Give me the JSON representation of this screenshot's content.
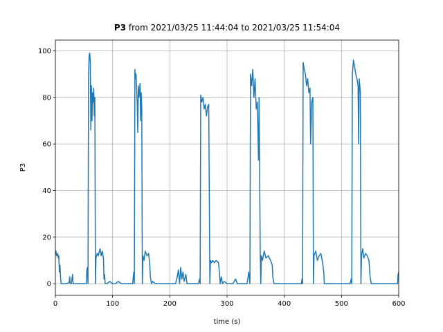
{
  "chart_data": {
    "type": "line",
    "title": {
      "bold": "P3",
      "text": "from 2021/03/25 11:44:04 to 2021/03/25 11:54:04"
    },
    "xlabel": "time (s)",
    "ylabel": "P3",
    "color": "#1f77b4",
    "grid": true,
    "xlim": [
      0,
      600
    ],
    "xticks": [
      0,
      100,
      200,
      300,
      400,
      500,
      600
    ],
    "ylim": [
      -5,
      104.6
    ],
    "yticks": [
      0,
      20,
      40,
      60,
      80,
      100
    ],
    "x": [
      0,
      1,
      2,
      4,
      5,
      6,
      7,
      8,
      9,
      10,
      12,
      15,
      20,
      24,
      25,
      26,
      28,
      30,
      31,
      35,
      40,
      45,
      50,
      54,
      55,
      56,
      57,
      58,
      59,
      60,
      61,
      62,
      63,
      64,
      65,
      66,
      67,
      68,
      69,
      70,
      71,
      73,
      75,
      78,
      80,
      82,
      84,
      85,
      86,
      87,
      90,
      95,
      100,
      105,
      110,
      115,
      120,
      125,
      130,
      135,
      137,
      138,
      139,
      140,
      141,
      143,
      144,
      145,
      146,
      148,
      149,
      150,
      151,
      152,
      153,
      155,
      157,
      160,
      163,
      165,
      166,
      168,
      170,
      175,
      180,
      185,
      190,
      195,
      200,
      205,
      210,
      213,
      215,
      217,
      219,
      221,
      223,
      225,
      228,
      230,
      235,
      240,
      245,
      250,
      252,
      253,
      254,
      256,
      258,
      260,
      262,
      264,
      266,
      268,
      270,
      271,
      273,
      275,
      278,
      281,
      285,
      287,
      288,
      290,
      292,
      295,
      300,
      305,
      310,
      315,
      318,
      320,
      325,
      330,
      335,
      338,
      340,
      341,
      343,
      345,
      347,
      349,
      351,
      353,
      355,
      356,
      358,
      359,
      360,
      362,
      365,
      368,
      372,
      376,
      379,
      380,
      382,
      385,
      390,
      395,
      400,
      405,
      410,
      415,
      420,
      425,
      430,
      431,
      432,
      433,
      435,
      437,
      439,
      441,
      443,
      445,
      446,
      448,
      450,
      451,
      452,
      455,
      458,
      461,
      464,
      467,
      469,
      470,
      475,
      480,
      485,
      490,
      495,
      500,
      505,
      510,
      515,
      517,
      518,
      519,
      521,
      523,
      525,
      527,
      529,
      530,
      531,
      533,
      534,
      535,
      537,
      539,
      542,
      545,
      548,
      550,
      552,
      555,
      560,
      565,
      570,
      575,
      580,
      585,
      590,
      595,
      598,
      599,
      600
    ],
    "values": [
      13,
      14,
      12,
      13,
      11,
      12,
      5,
      8,
      3,
      0,
      0,
      0,
      0,
      0.5,
      3,
      0,
      0,
      4,
      0,
      0,
      0,
      0,
      0,
      0,
      6,
      7,
      0,
      90,
      98,
      99,
      95,
      66,
      85,
      70,
      82,
      78,
      84,
      72,
      80,
      0,
      11,
      13,
      12,
      15,
      12,
      14,
      11,
      2,
      4,
      0,
      0,
      1,
      0,
      0,
      1,
      0,
      0,
      0,
      0,
      0,
      5,
      0,
      92,
      88,
      90,
      78,
      65,
      85,
      80,
      86,
      70,
      82,
      75,
      0,
      12,
      10,
      14,
      12,
      13,
      8,
      3,
      0,
      1,
      0,
      0,
      0,
      0,
      0,
      0,
      0,
      0,
      3,
      6,
      0,
      7,
      2,
      5,
      1,
      4,
      0,
      0,
      0,
      0,
      0,
      2,
      0,
      81,
      78,
      80,
      75,
      77,
      72,
      76,
      77,
      0,
      10,
      9,
      10,
      9,
      10,
      9,
      4,
      0,
      3,
      0,
      1,
      0,
      0,
      0,
      2,
      0,
      0,
      0,
      0,
      0,
      5,
      0,
      90,
      85,
      92,
      80,
      88,
      75,
      78,
      53,
      80,
      14,
      0,
      12,
      10,
      14,
      11,
      12,
      10,
      8,
      3,
      0,
      0,
      0,
      0,
      0,
      0,
      0,
      0,
      0,
      0,
      0,
      2,
      0,
      95,
      92,
      90,
      85,
      88,
      82,
      84,
      60,
      78,
      80,
      0,
      12,
      14,
      10,
      12,
      13,
      9,
      5,
      0,
      0,
      0,
      0,
      0,
      0,
      0,
      0,
      0,
      0,
      2,
      0,
      90,
      96,
      93,
      90,
      88,
      85,
      60,
      88,
      82,
      0,
      12,
      15,
      11,
      13,
      12,
      10,
      3,
      0,
      0,
      0,
      0,
      0,
      0,
      0,
      0,
      0,
      0,
      0,
      4,
      5
    ]
  }
}
